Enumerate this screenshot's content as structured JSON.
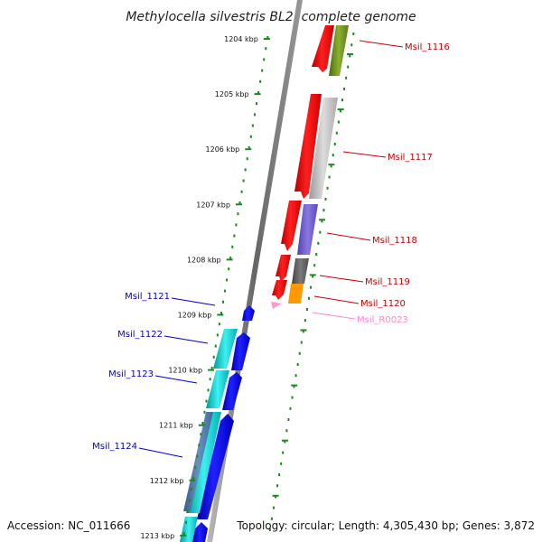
{
  "title": "Methylocella silvestris BL2, complete genome",
  "footer": {
    "accession": "Accession: NC_011666",
    "summary": "Topology: circular; Length: 4,305,430 bp; Genes: 3,872"
  },
  "ticks": [
    "1204 kbp",
    "1205 kbp",
    "1206 kbp",
    "1207 kbp",
    "1208 kbp",
    "1209 kbp",
    "1210 kbp",
    "1211 kbp",
    "1212 kbp",
    "1213 kbp"
  ],
  "right_labels": [
    {
      "text": "Msil_1116",
      "color": "#cc0000"
    },
    {
      "text": "Msil_1117",
      "color": "#cc0000"
    },
    {
      "text": "Msil_1118",
      "color": "#cc0000"
    },
    {
      "text": "Msil_1119",
      "color": "#cc0000"
    },
    {
      "text": "Msil_1120",
      "color": "#cc0000"
    },
    {
      "text": "Msil_R0023",
      "color": "#ff88cc"
    }
  ],
  "left_labels": [
    {
      "text": "Msil_1121",
      "color": "#0000cc"
    },
    {
      "text": "Msil_1122",
      "color": "#0000cc"
    },
    {
      "text": "Msil_1123",
      "color": "#0000cc"
    },
    {
      "text": "Msil_1124",
      "color": "#0000cc"
    }
  ],
  "colors": {
    "forward_cds": "#ff0000",
    "reverse_cds": "#0000ee",
    "backbone": "#888888",
    "tick": "#1a8a1a"
  }
}
